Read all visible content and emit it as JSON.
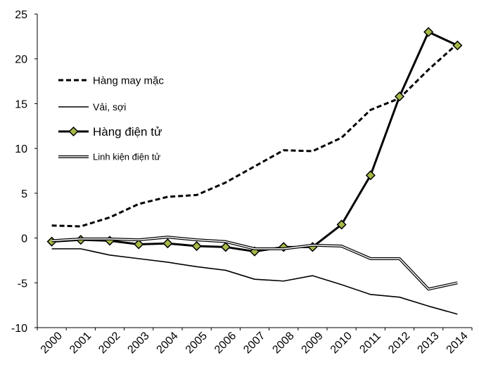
{
  "chart_data": {
    "type": "line",
    "title": "",
    "xlabel": "",
    "ylabel": "",
    "x": [
      "2000",
      "2001",
      "2002",
      "2003",
      "2004",
      "2005",
      "2006",
      "2007",
      "2008",
      "2009",
      "2010",
      "2011",
      "2012",
      "2013",
      "2014"
    ],
    "ylim": [
      -10,
      25
    ],
    "yticks": [
      "25",
      "20",
      "15",
      "10",
      "5",
      "0",
      "-5",
      "-10"
    ],
    "grid": false,
    "legend_position": "left",
    "series": [
      {
        "name": "Hàng may mặc",
        "style": "dashed",
        "color": "#000000",
        "values": [
          1.4,
          1.3,
          2.3,
          3.8,
          4.6,
          4.8,
          6.2,
          8.0,
          9.8,
          9.7,
          11.2,
          14.3,
          15.6,
          18.8,
          21.7
        ]
      },
      {
        "name": "Vải, sợi",
        "style": "thin",
        "color": "#000000",
        "values": [
          -1.2,
          -1.2,
          -1.9,
          -2.3,
          -2.7,
          -3.2,
          -3.6,
          -4.6,
          -4.8,
          -4.2,
          -5.2,
          -6.3,
          -6.6,
          -7.6,
          -8.5
        ]
      },
      {
        "name": "Hàng điện tử",
        "style": "thick-diamond",
        "color": "#000000",
        "marker_color": "#a8b848",
        "values": [
          -0.4,
          -0.2,
          -0.3,
          -0.7,
          -0.6,
          -0.9,
          -1.0,
          -1.5,
          -1.0,
          -1.0,
          1.5,
          7.0,
          15.8,
          23.0,
          21.5
        ]
      },
      {
        "name": "Linh kiện điện tử",
        "style": "double",
        "color": "#000000",
        "values": [
          -0.3,
          -0.1,
          -0.1,
          -0.2,
          0.1,
          -0.2,
          -0.4,
          -1.2,
          -1.2,
          -0.8,
          -0.9,
          -2.3,
          -2.3,
          -5.7,
          -5.0
        ]
      }
    ]
  }
}
